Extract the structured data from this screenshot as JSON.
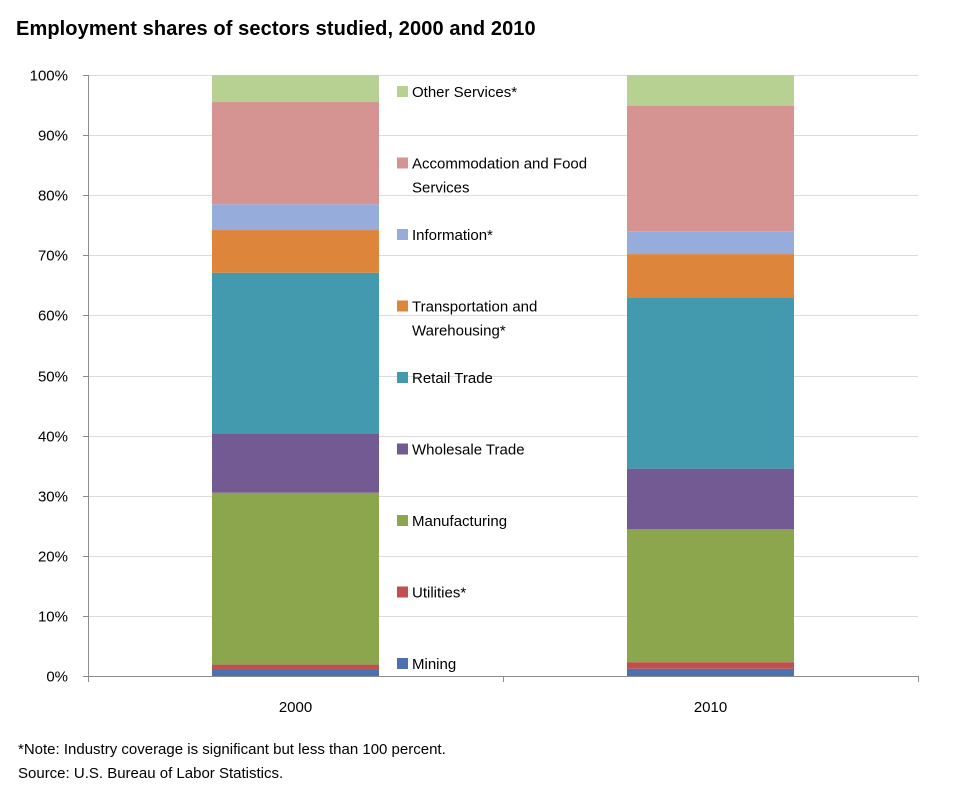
{
  "title": "Employment shares of sectors studied, 2000 and 2010",
  "notes": {
    "line1": "*Note: Industry coverage is significant but less than 100 percent.",
    "line2": "Source: U.S. Bureau of Labor Statistics."
  },
  "colors": {
    "Mining": "#4a72b0",
    "Utilities": "#c0504d",
    "Manufacturing": "#8ba64d",
    "Wholesale Trade": "#735a92",
    "Retail Trade": "#4399ae",
    "Transportation and Warehousing": "#dd853b",
    "Information": "#96addb",
    "Accommodation and Food Services": "#d59391",
    "Other Services": "#b7d193"
  },
  "chart_data": {
    "type": "bar",
    "stacked": true,
    "title": "Employment shares of sectors studied, 2000 and 2010",
    "categories": [
      "2000",
      "2010"
    ],
    "ylim": [
      0,
      100
    ],
    "yticks": [
      "0%",
      "10%",
      "20%",
      "30%",
      "40%",
      "50%",
      "60%",
      "70%",
      "80%",
      "90%",
      "100%"
    ],
    "grid": true,
    "legend_position": "center between bars",
    "series": [
      {
        "name": "Mining",
        "legend": [
          "Mining"
        ],
        "values": [
          1.0,
          1.2
        ]
      },
      {
        "name": "Utilities*",
        "legend": [
          "Utilities*"
        ],
        "values": [
          0.9,
          1.1
        ]
      },
      {
        "name": "Manufacturing",
        "legend": [
          "Manufacturing"
        ],
        "values": [
          28.6,
          22.1
        ]
      },
      {
        "name": "Wholesale Trade",
        "legend": [
          "Wholesale Trade"
        ],
        "values": [
          9.9,
          10.1
        ]
      },
      {
        "name": "Retail Trade",
        "legend": [
          "Retail Trade"
        ],
        "values": [
          26.7,
          28.5
        ]
      },
      {
        "name": "Transportation and Warehousing*",
        "legend": [
          "Transportation and",
          "Warehousing*"
        ],
        "values": [
          7.1,
          7.2
        ]
      },
      {
        "name": "Information*",
        "legend": [
          "Information*"
        ],
        "values": [
          4.3,
          3.8
        ]
      },
      {
        "name": "Accommodation and Food Services",
        "legend": [
          "Accommodation and Food",
          "Services"
        ],
        "values": [
          17.0,
          20.9
        ]
      },
      {
        "name": "Other Services*",
        "legend": [
          "Other Services*"
        ],
        "values": [
          4.5,
          5.1
        ]
      }
    ]
  }
}
